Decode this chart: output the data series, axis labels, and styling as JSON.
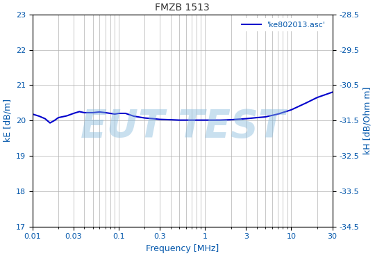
{
  "title": "FMZB 1513",
  "xlabel": "Frequency [MHz]",
  "ylabel_left": "kE [dB/m]",
  "ylabel_right": "kH [dB/Ohm m]",
  "legend_label": "'ke802013.asc'",
  "xlim": [
    0.01,
    30
  ],
  "ylim_left": [
    17,
    23
  ],
  "ylim_right": [
    -34.5,
    -28.5
  ],
  "yticks_left": [
    17,
    18,
    19,
    20,
    21,
    22,
    23
  ],
  "yticks_right": [
    -34.5,
    -33.5,
    -32.5,
    -31.5,
    -30.5,
    -29.5,
    -28.5
  ],
  "xticks": [
    0.01,
    0.03,
    0.1,
    0.3,
    1,
    3,
    10,
    30
  ],
  "line_color": "#0000cc",
  "grid_color": "#b0b0b0",
  "watermark_text": "EUT TEST",
  "watermark_color": "#88bbdd",
  "watermark_alpha": 0.45,
  "background_color": "#ffffff",
  "title_color": "#333333",
  "label_color": "#0055aa",
  "freq_points": [
    0.01,
    0.012,
    0.014,
    0.016,
    0.018,
    0.02,
    0.025,
    0.03,
    0.035,
    0.04,
    0.05,
    0.06,
    0.07,
    0.08,
    0.09,
    0.1,
    0.12,
    0.15,
    0.2,
    0.25,
    0.3,
    0.4,
    0.5,
    0.7,
    1.0,
    1.5,
    2.0,
    3.0,
    4.0,
    5.0,
    7.0,
    10.0,
    15.0,
    20.0,
    30.0
  ],
  "ke_points": [
    20.18,
    20.12,
    20.05,
    19.93,
    20.0,
    20.08,
    20.13,
    20.2,
    20.25,
    20.22,
    20.22,
    20.24,
    20.22,
    20.2,
    20.18,
    20.2,
    20.2,
    20.12,
    20.07,
    20.05,
    20.03,
    20.02,
    20.01,
    20.01,
    20.01,
    20.01,
    20.02,
    20.05,
    20.08,
    20.1,
    20.18,
    20.3,
    20.5,
    20.65,
    20.8
  ]
}
